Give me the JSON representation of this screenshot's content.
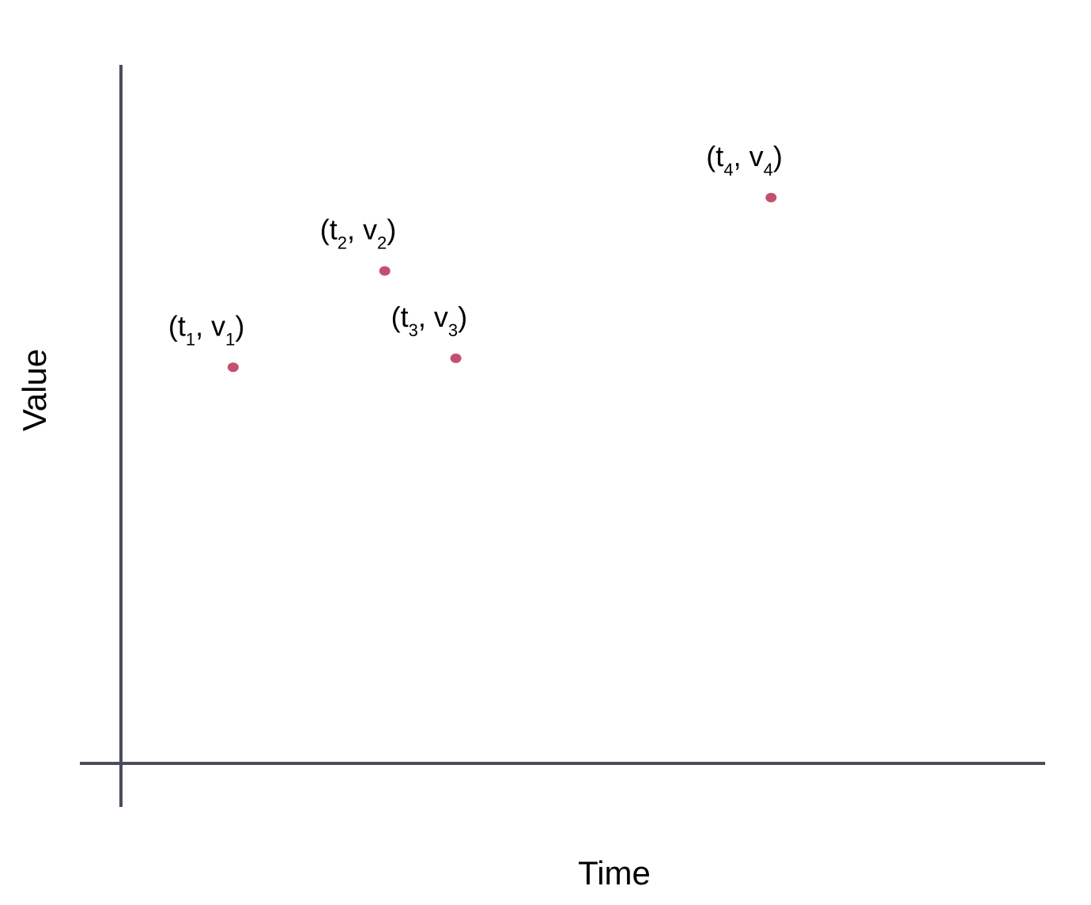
{
  "chart_data": {
    "type": "scatter",
    "title": "",
    "xlabel": "Time",
    "ylabel": "Value",
    "grid": false,
    "legend": "none",
    "point_color": "#c4506f",
    "axis_color": "#4a4d5c",
    "points": [
      {
        "x": 1.42,
        "y": 5.67,
        "label": {
          "t": "t",
          "t_sub": "1",
          "v": "v",
          "v_sub": "1"
        }
      },
      {
        "x": 3.34,
        "y": 7.05,
        "label": {
          "t": "t",
          "t_sub": "2",
          "v": "v",
          "v_sub": "2"
        }
      },
      {
        "x": 4.24,
        "y": 5.8,
        "label": {
          "t": "t",
          "t_sub": "3",
          "v": "v",
          "v_sub": "3"
        }
      },
      {
        "x": 8.23,
        "y": 8.1,
        "label": {
          "t": "t",
          "t_sub": "4",
          "v": "v",
          "v_sub": "4"
        }
      }
    ],
    "xlim": [
      0,
      11.7
    ],
    "ylim": [
      0,
      10
    ]
  }
}
